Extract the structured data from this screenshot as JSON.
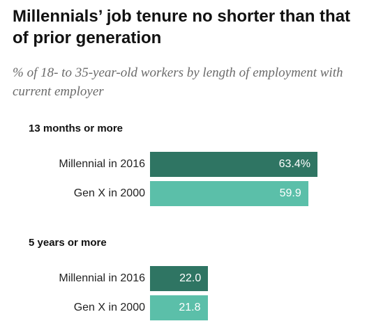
{
  "chart_data": {
    "type": "bar",
    "orientation": "horizontal",
    "title": "Millennials’ job tenure no shorter than that of prior generation",
    "subtitle": "% of 18- to 35-year-old workers by length of employment with current employer",
    "groups": [
      {
        "label": "13 months or more",
        "bars": [
          {
            "category": "Millennial in 2016",
            "value": 63.4,
            "value_label": "63.4%",
            "color": "#2f7563"
          },
          {
            "category": "Gen X in 2000",
            "value": 59.9,
            "value_label": "59.9",
            "color": "#5bbfa9"
          }
        ]
      },
      {
        "label": "5 years or more",
        "bars": [
          {
            "category": "Millennial in 2016",
            "value": 22.0,
            "value_label": "22.0",
            "color": "#2f7563"
          },
          {
            "category": "Gen X in 2000",
            "value": 21.8,
            "value_label": "21.8",
            "color": "#5bbfa9"
          }
        ]
      }
    ],
    "xlim": [
      0,
      100
    ],
    "grid": false,
    "legend": "none"
  }
}
